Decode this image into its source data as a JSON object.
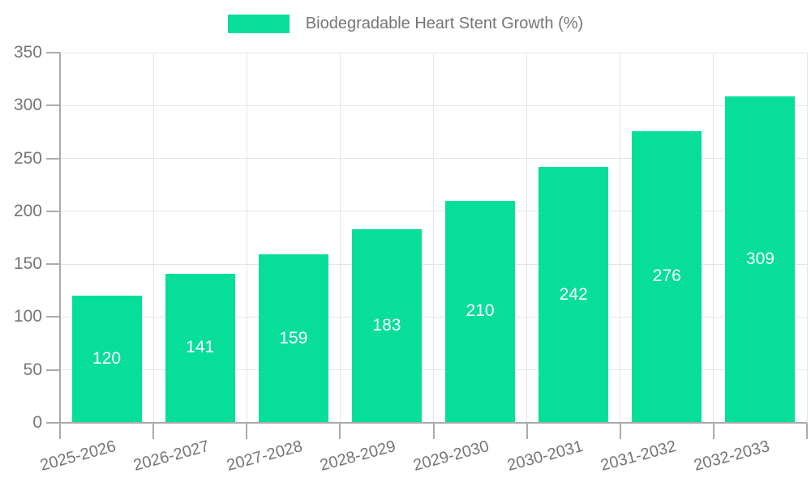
{
  "legend": {
    "swatch_color": "#06DE9A"
  },
  "chart_data": {
    "type": "bar",
    "title": "Biodegradable Heart Stent Growth (%)",
    "categories": [
      "2025-2026",
      "2026-2027",
      "2027-2028",
      "2028-2029",
      "2029-2030",
      "2030-2031",
      "2031-2032",
      "2032-2033"
    ],
    "values": [
      120,
      141,
      159,
      183,
      210,
      242,
      276,
      309
    ],
    "series": [
      {
        "name": "Biodegradable Heart Stent Growth (%)",
        "values": [
          120,
          141,
          159,
          183,
          210,
          242,
          276,
          309
        ]
      }
    ],
    "xlabel": "",
    "ylabel": "",
    "ylim": [
      0,
      350
    ],
    "yticks": [
      0,
      50,
      100,
      150,
      200,
      250,
      300,
      350
    ],
    "grid": true,
    "legend_position": "top-center",
    "value_label_style": "white-centered-inside-bar",
    "colors": {
      "bar": "#06DE9A",
      "grid": "#E5E5E5",
      "axis": "#ABABAB",
      "tick_text": "#757575",
      "value_text": "#FFFFFF",
      "background": "#FFFFFF"
    }
  }
}
